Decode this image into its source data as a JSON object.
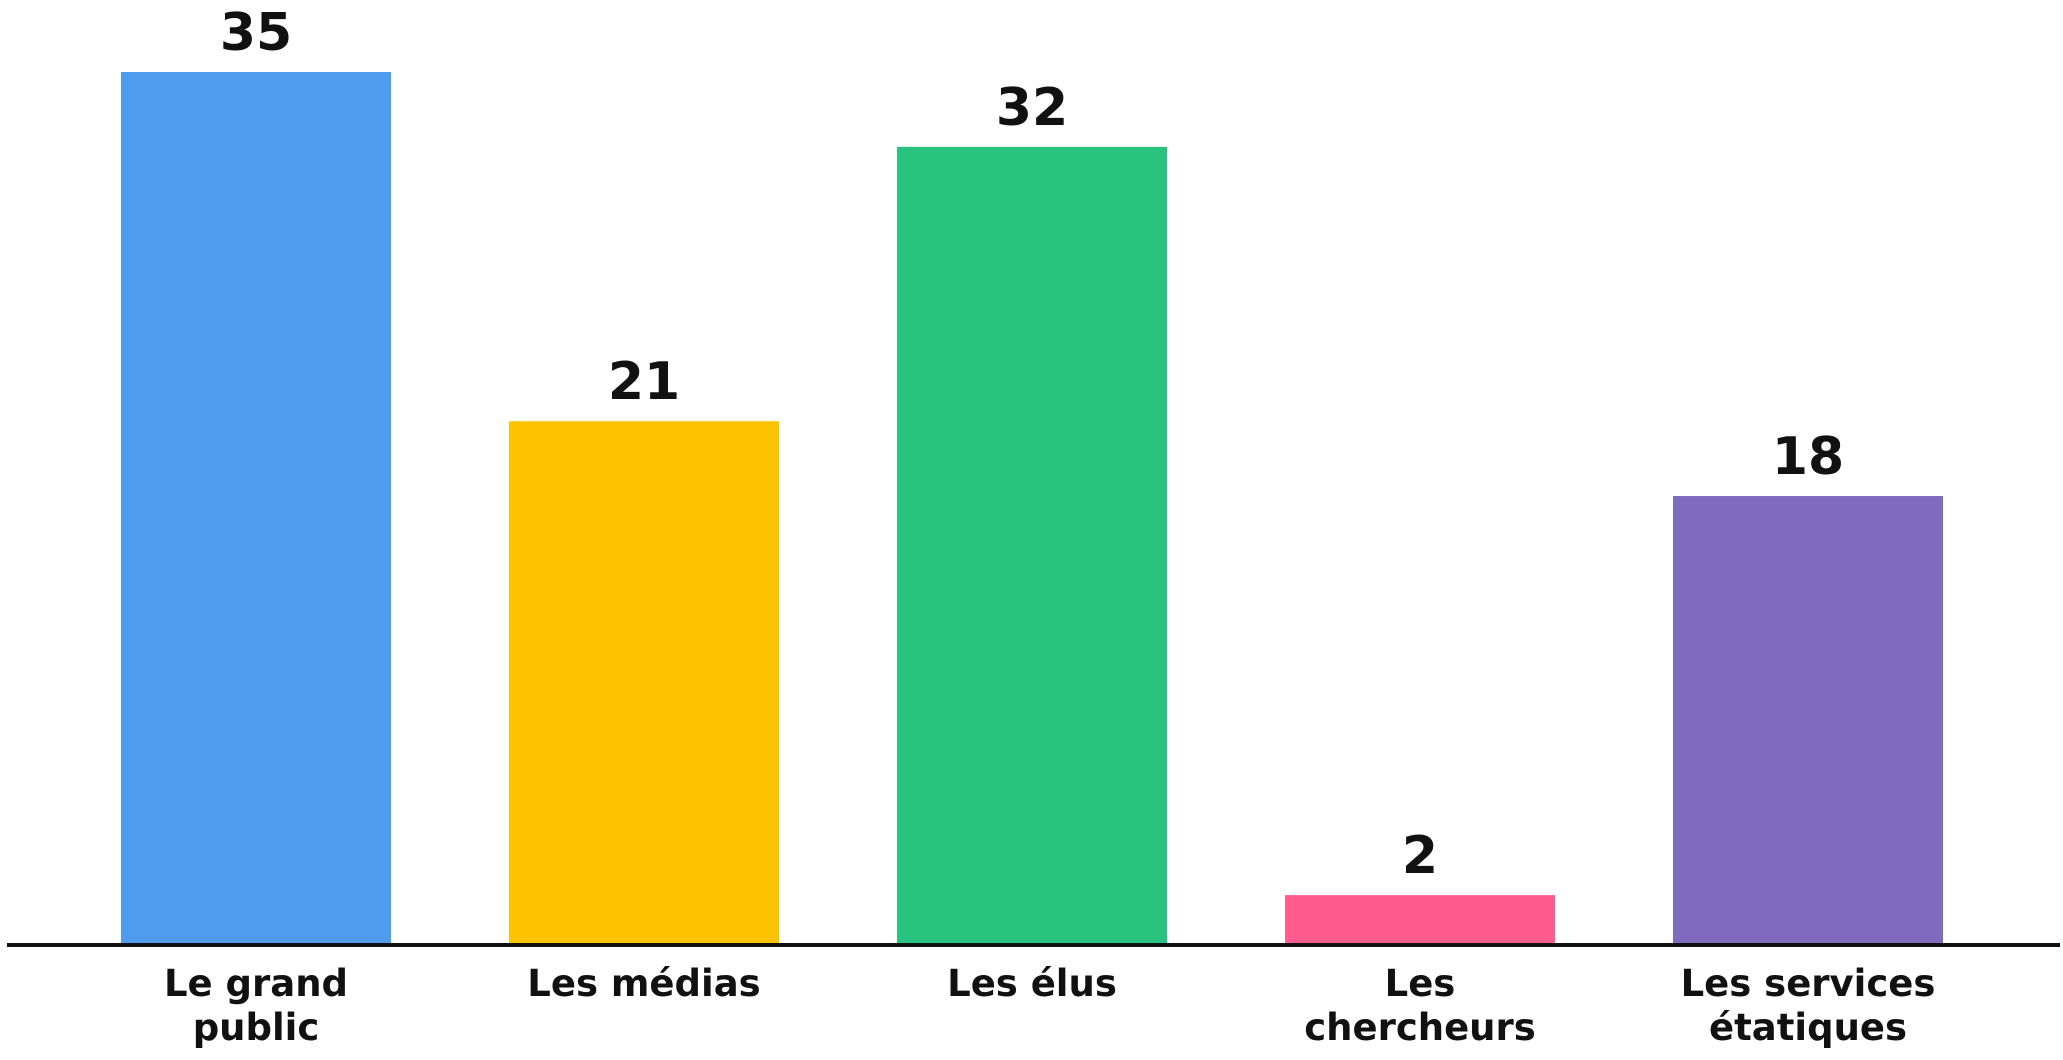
{
  "chart_data": {
    "type": "bar",
    "categories": [
      "Le grand public",
      "Les médias",
      "Les élus",
      "Les chercheurs",
      "Les services étatiques"
    ],
    "values": [
      35,
      21,
      32,
      2,
      18
    ],
    "colors": [
      "#4f9bee",
      "#fdc300",
      "#29c27f",
      "#ff5b8f",
      "#7e6bbd"
    ],
    "ylim": [
      0,
      35
    ]
  }
}
